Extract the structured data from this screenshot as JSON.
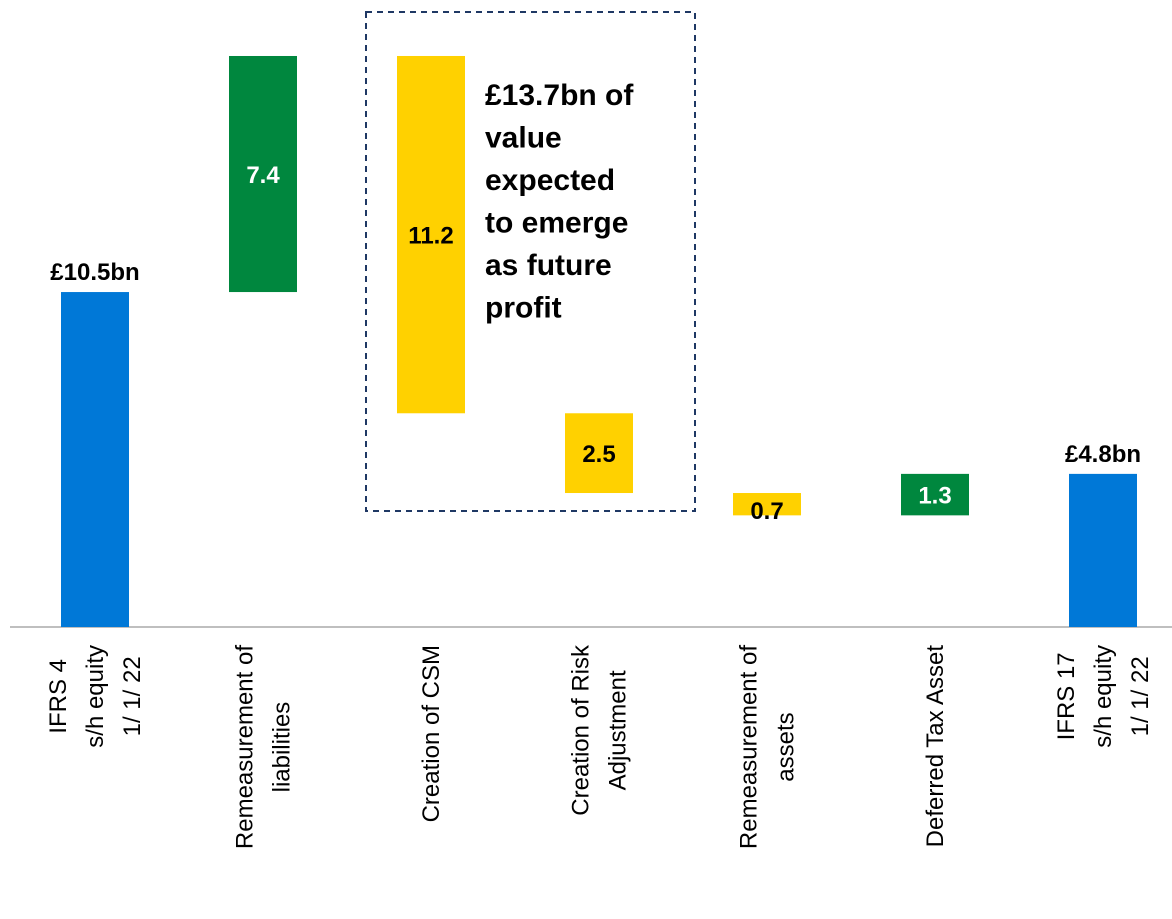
{
  "chart_data": {
    "type": "waterfall",
    "categories": [
      [
        "IFRS 4",
        "s/h equity",
        "1/ 1/ 22"
      ],
      [
        "Remeasurement of",
        "liabilities"
      ],
      [
        "Creation of CSM"
      ],
      [
        "Creation of Risk",
        "Adjustment"
      ],
      [
        "Remeasurement of",
        "assets"
      ],
      [
        "Deferred Tax Asset"
      ],
      [
        "IFRS 17",
        "s/h equity",
        "1/ 1/ 22"
      ]
    ],
    "values": [
      10.5,
      7.4,
      -11.2,
      -2.5,
      -0.7,
      1.3,
      4.8
    ],
    "value_labels": [
      "£10.5bn",
      "7.4",
      "11.2",
      "2.5",
      "0.7",
      "1.3",
      "£4.8bn"
    ],
    "measures": [
      "total",
      "relative",
      "relative",
      "relative",
      "relative",
      "relative",
      "total"
    ],
    "colors": [
      "#0078d7",
      "#00873e",
      "#ffd100",
      "#ffd100",
      "#ffd100",
      "#00873e",
      "#0078d7"
    ],
    "label_colors": [
      "#000000",
      "#ffffff",
      "#000000",
      "#000000",
      "#000000",
      "#ffffff",
      "#000000"
    ],
    "ylim": [
      0,
      18
    ],
    "annotation": [
      "£13.7bn of",
      "value",
      "expected",
      "to emerge",
      "as future",
      "profit"
    ]
  }
}
